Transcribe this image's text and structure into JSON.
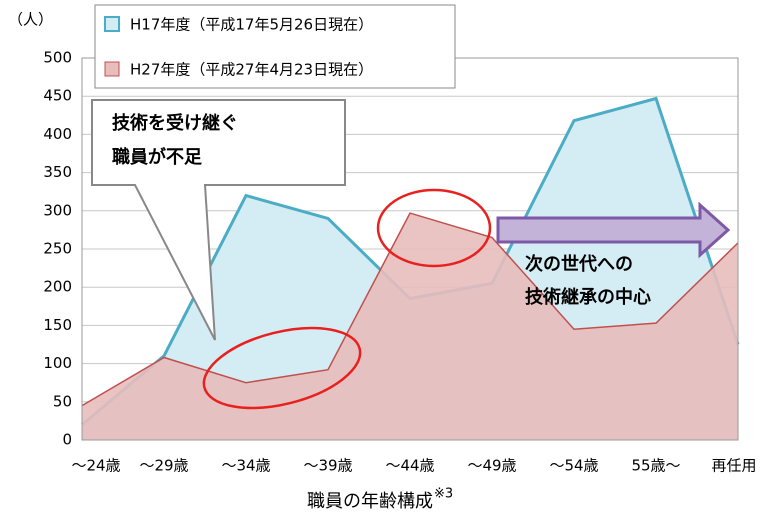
{
  "chart_data": {
    "type": "area",
    "y_unit": "（人）",
    "x_label": "職員の年齢構成",
    "x_label_note": "※3",
    "categories": [
      "〜24歳",
      "〜29歳",
      "〜34歳",
      "〜39歳",
      "〜44歳",
      "〜49歳",
      "〜54歳",
      "55歳〜",
      "再任用"
    ],
    "series": [
      {
        "name": "H17年度（平成17年5月26日現在）",
        "color": "#4bacc6",
        "fill": "#d4ecf4",
        "values": [
          20,
          110,
          320,
          290,
          185,
          205,
          418,
          447,
          125
        ]
      },
      {
        "name": "H27年度（平成27年4月23日現在）",
        "color": "#c0504d",
        "fill": "#e8bdbc",
        "values": [
          45,
          108,
          75,
          92,
          297,
          265,
          145,
          153,
          258
        ]
      }
    ],
    "ylim": [
      0,
      500
    ],
    "yticks": [
      0,
      50,
      100,
      150,
      200,
      250,
      300,
      350,
      400,
      450,
      500
    ],
    "grid": true,
    "annotations": [
      {
        "lines": [
          "技術を受け継ぐ",
          "職員が不足"
        ]
      },
      {
        "lines": [
          "次の世代への",
          "技術継承の中心"
        ]
      }
    ]
  }
}
